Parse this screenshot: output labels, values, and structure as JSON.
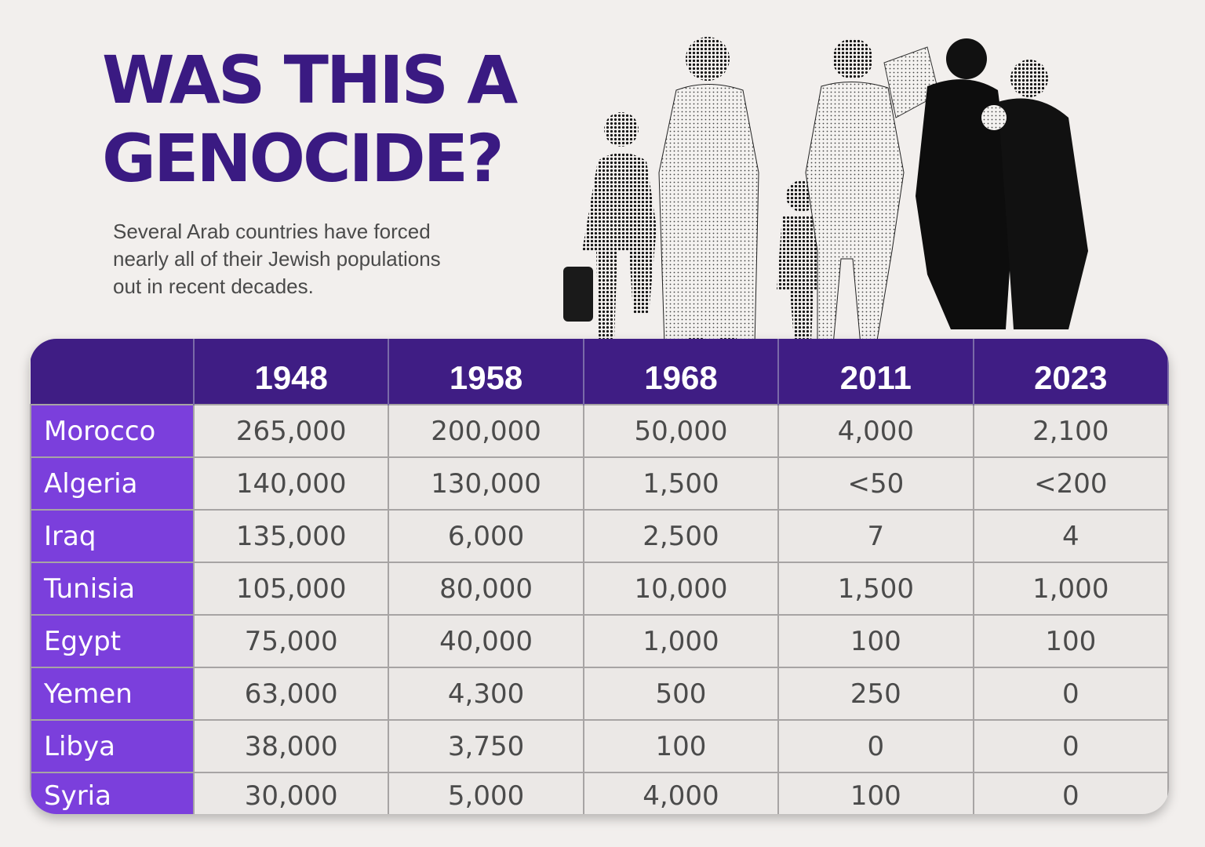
{
  "title_line1": "WAS THIS A",
  "title_line2": "GENOCIDE?",
  "subtitle": "Several Arab countries have forced nearly all of their Jewish populations out in recent decades.",
  "colors": {
    "dark_purple": "#3f1d84",
    "title_purple": "#3a1a82",
    "row_purple": "#7b3fdc",
    "background": "#f2efed"
  },
  "table": {
    "columns": [
      "1948",
      "1958",
      "1968",
      "2011",
      "2023"
    ],
    "rows": [
      {
        "country": "Morocco",
        "values": [
          "265,000",
          "200,000",
          "50,000",
          "4,000",
          "2,100"
        ]
      },
      {
        "country": "Algeria",
        "values": [
          "140,000",
          "130,000",
          "1,500",
          "<50",
          "<200"
        ]
      },
      {
        "country": "Iraq",
        "values": [
          "135,000",
          "6,000",
          "2,500",
          "7",
          "4"
        ]
      },
      {
        "country": "Tunisia",
        "values": [
          "105,000",
          "80,000",
          "10,000",
          "1,500",
          "1,000"
        ]
      },
      {
        "country": "Egypt",
        "values": [
          "75,000",
          "40,000",
          "1,000",
          "100",
          "100"
        ]
      },
      {
        "country": "Yemen",
        "values": [
          "63,000",
          "4,300",
          "500",
          "250",
          "0"
        ]
      },
      {
        "country": "Libya",
        "values": [
          "38,000",
          "3,750",
          "100",
          "0",
          "0"
        ]
      },
      {
        "country": "Syria",
        "values": [
          "30,000",
          "5,000",
          "4,000",
          "100",
          "0"
        ]
      }
    ]
  }
}
